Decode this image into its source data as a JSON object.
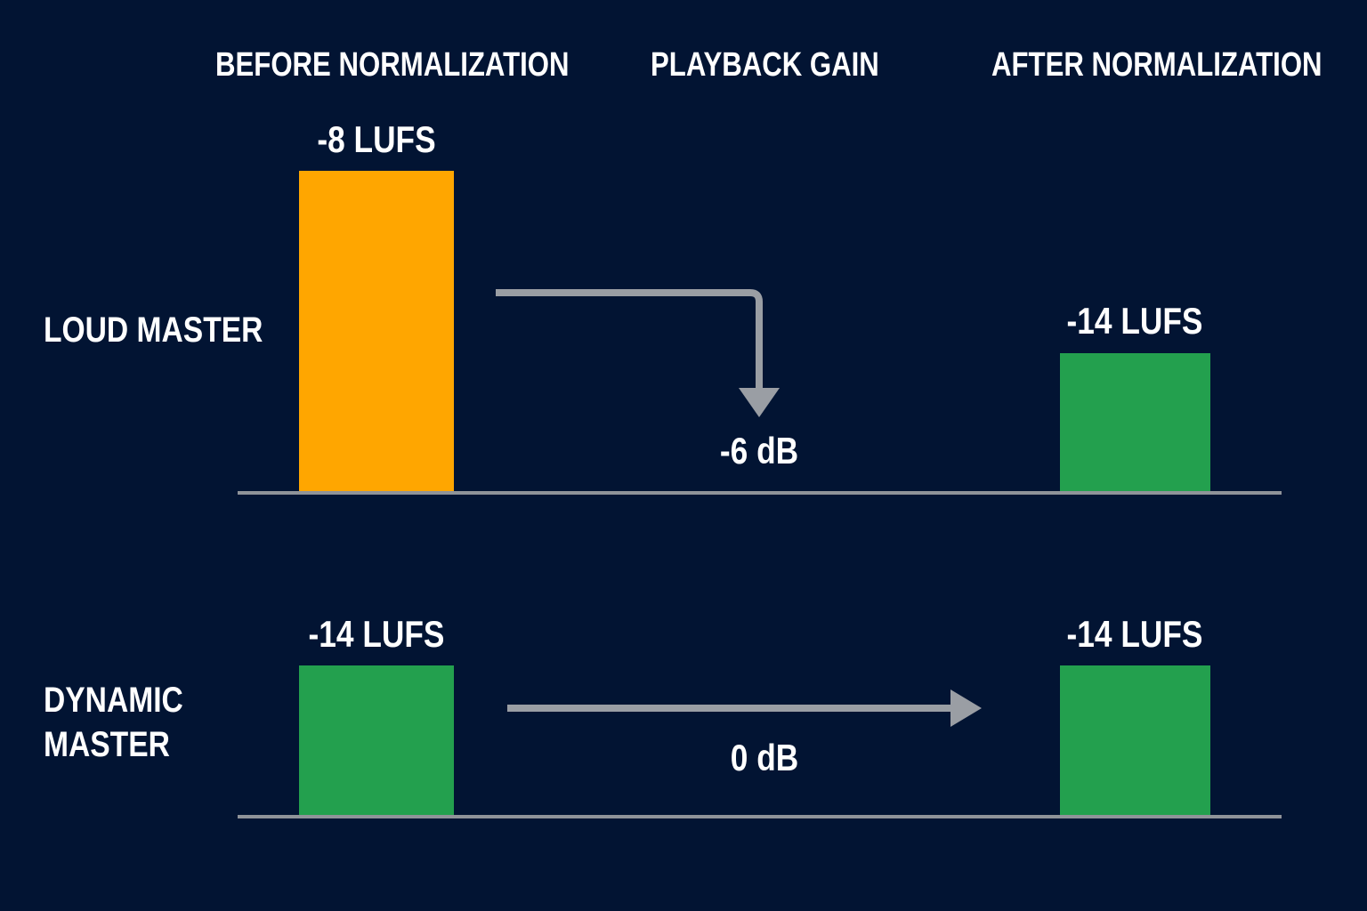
{
  "columns": {
    "before": "BEFORE NORMALIZATION",
    "gain": "PLAYBACK GAIN",
    "after": "AFTER NORMALIZATION"
  },
  "rows": {
    "loud": {
      "label": "LOUD MASTER",
      "before_value": "-8 LUFS",
      "gain_value": "-6 dB",
      "after_value": "-14 LUFS"
    },
    "dynamic": {
      "label_line1": "DYNAMIC",
      "label_line2": "MASTER",
      "before_value": "-14 LUFS",
      "gain_value": "0 dB",
      "after_value": "-14 LUFS"
    }
  },
  "colors": {
    "background": "#021433",
    "loud_bar": "#ffa600",
    "normal_bar": "#23a04e",
    "arrow": "#9a9ea4",
    "baseline": "#8f9399",
    "text": "#ffffff"
  },
  "icons": {
    "loud_gain_arrow": "elbow-down-arrow-icon",
    "dynamic_gain_arrow": "right-arrow-icon"
  }
}
